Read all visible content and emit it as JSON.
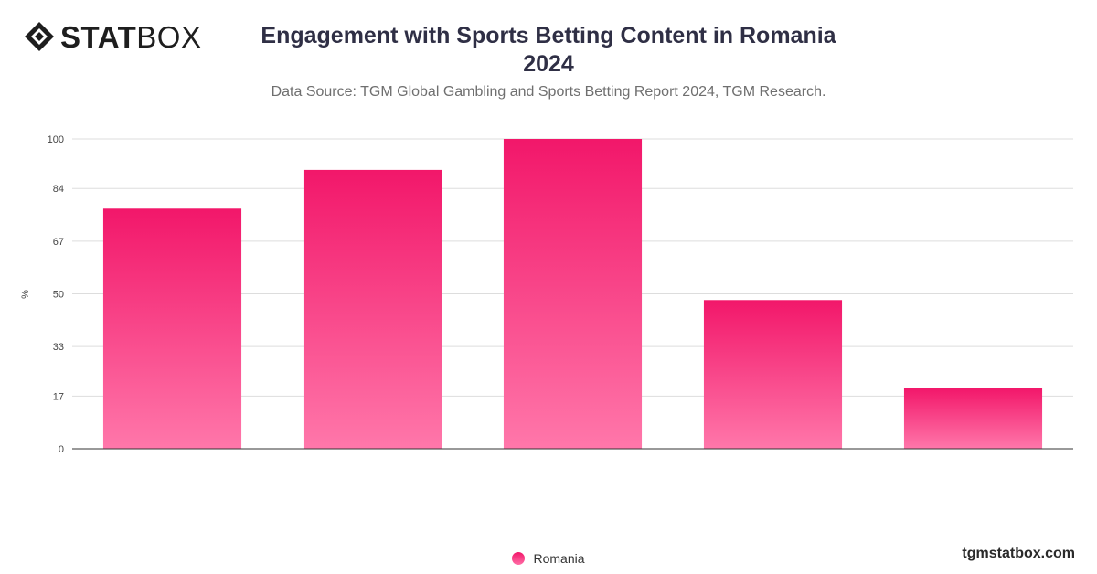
{
  "brand": {
    "logo_bold": "STAT",
    "logo_light": "BOX",
    "site": "tgmstatbox.com"
  },
  "title_line1": "Engagement with Sports Betting Content in Romania",
  "title_line2": "2024",
  "subtitle": "Data Source: TGM Global Gambling and Sports Betting Report 2024, TGM Research.",
  "chart_data": {
    "type": "bar",
    "title": "Engagement with Sports Betting Content in Romania 2024",
    "subtitle": "Data Source: TGM Global Gambling and Sports Betting Report 2024, TGM Research.",
    "ylabel": "%",
    "xlabel": "",
    "categories": [
      "",
      "",
      "",
      "",
      ""
    ],
    "series": [
      {
        "name": "Romania",
        "values": [
          77.5,
          90,
          100,
          48,
          19.5
        ]
      }
    ],
    "ylim": [
      0,
      100
    ],
    "yticks": [
      0,
      17,
      33,
      50,
      67,
      84,
      100
    ],
    "grid": true,
    "legend": "bottom-center",
    "colors": {
      "bar_top": "#f2176a",
      "bar_bottom": "#ff77aa",
      "grid": "#dddddd",
      "axis": "#333333"
    }
  }
}
